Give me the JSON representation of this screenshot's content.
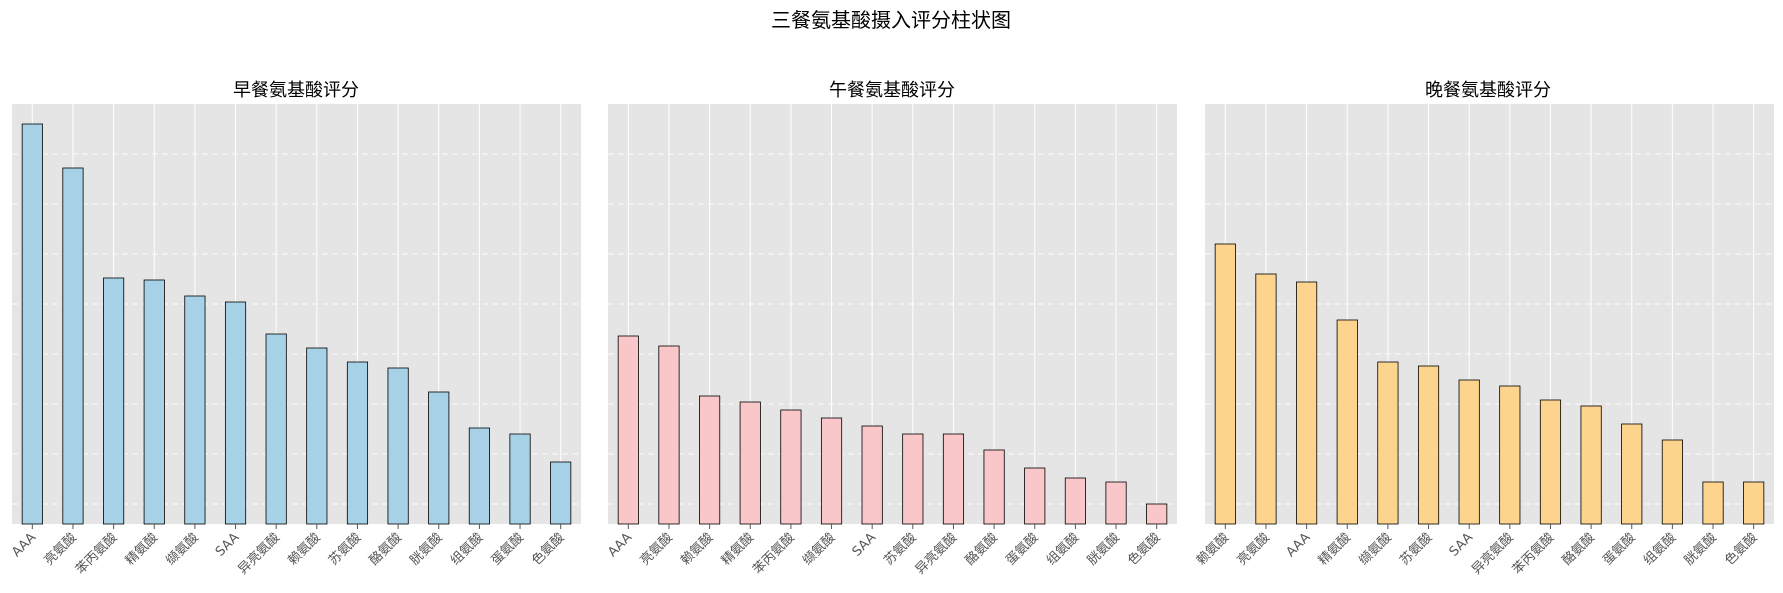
{
  "chart_data": {
    "title": "三餐氨基酸摄入评分柱状图",
    "panels": [
      {
        "type": "bar",
        "title": "早餐氨基酸评分",
        "color": "#a6d1e6",
        "ylim": [
          0,
          105
        ],
        "categories": [
          "AAA",
          "亮氨酸",
          "苯丙氨酸",
          "精氨酸",
          "缬氨酸",
          "SAA",
          "异亮氨酸",
          "赖氨酸",
          "苏氨酸",
          "酪氨酸",
          "胱氨酸",
          "组氨酸",
          "蛋氨酸",
          "色氨酸"
        ],
        "values": [
          100,
          89,
          61.5,
          61,
          57,
          55.5,
          47.5,
          44,
          40.5,
          39,
          33,
          24,
          22.5,
          15.5
        ]
      },
      {
        "type": "bar",
        "title": "午餐氨基酸评分",
        "color": "#f9c6c9",
        "ylim": [
          0,
          105
        ],
        "categories": [
          "AAA",
          "亮氨酸",
          "赖氨酸",
          "精氨酸",
          "苯丙氨酸",
          "缬氨酸",
          "SAA",
          "苏氨酸",
          "异亮氨酸",
          "酪氨酸",
          "蛋氨酸",
          "组氨酸",
          "胱氨酸",
          "色氨酸"
        ],
        "values": [
          47,
          44.5,
          32,
          30.5,
          28.5,
          26.5,
          24.5,
          22.5,
          22.5,
          18.5,
          14,
          11.5,
          10.5,
          5
        ]
      },
      {
        "type": "bar",
        "title": "晚餐氨基酸评分",
        "color": "#fdd48d",
        "ylim": [
          0,
          105
        ],
        "categories": [
          "赖氨酸",
          "亮氨酸",
          "AAA",
          "精氨酸",
          "缬氨酸",
          "苏氨酸",
          "SAA",
          "异亮氨酸",
          "苯丙氨酸",
          "酪氨酸",
          "蛋氨酸",
          "组氨酸",
          "胱氨酸",
          "色氨酸"
        ],
        "values": [
          70,
          62.5,
          60.5,
          51,
          40.5,
          39.5,
          36,
          34.5,
          31,
          29.5,
          25,
          21,
          10.5,
          10.5
        ]
      }
    ]
  }
}
